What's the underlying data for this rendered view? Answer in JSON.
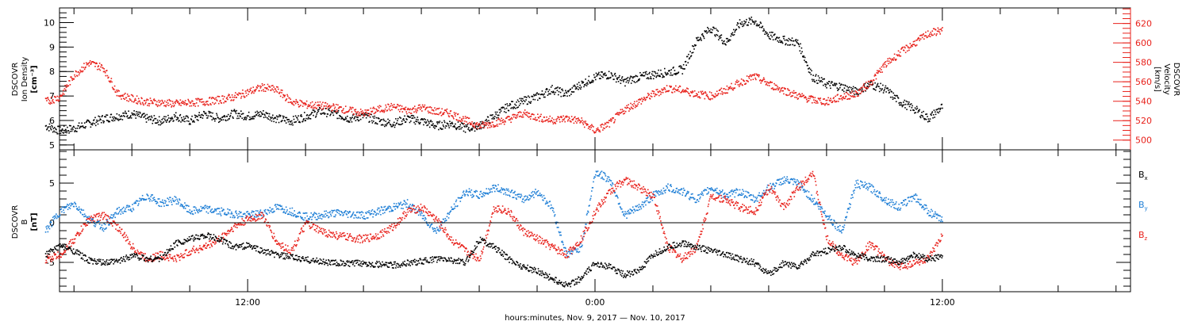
{
  "chart_data": [
    {
      "type": "scatter",
      "panel": "top",
      "ylabel_left": [
        "DSCOVR",
        "Ion Density",
        "[cm⁻³]"
      ],
      "ylabel_right": [
        "DSCOVR",
        "Velocity",
        "[km/s]"
      ],
      "ylim_left": [
        4.8,
        10.6
      ],
      "ylim_right": [
        490,
        636
      ],
      "yticks_left": [
        "5",
        "6",
        "7",
        "8",
        "9",
        "10"
      ],
      "yticks_left_values": [
        5,
        6,
        7,
        8,
        9,
        10
      ],
      "yticks_right": [
        "500",
        "520",
        "540",
        "560",
        "580",
        "600",
        "620"
      ],
      "yticks_right_values": [
        500,
        520,
        540,
        560,
        580,
        600,
        620
      ],
      "series": [
        {
          "axis": "left",
          "color": "#000000",
          "x": [
            5.0,
            5.5,
            6.0,
            6.5,
            7.0,
            7.5,
            8.0,
            8.5,
            9.0,
            9.5,
            10.0,
            10.5,
            11.0,
            11.5,
            12.0,
            12.5,
            13.0,
            13.5,
            14.0,
            14.5,
            15.0,
            15.5,
            16.0,
            16.5,
            17.0,
            17.5,
            18.0,
            18.5,
            19.0,
            19.5,
            20.0,
            20.5,
            21.0,
            21.5,
            22.0,
            22.5,
            23.0,
            23.5,
            24.0,
            24.5,
            25.0,
            25.5,
            26.0,
            26.5,
            27.0,
            27.5,
            28.0,
            28.5,
            29.0,
            29.5,
            30.0,
            30.5,
            31.0,
            31.5,
            32.0,
            32.5,
            33.0,
            33.5,
            34.0,
            34.5,
            35.0,
            35.5,
            36.0
          ],
          "y": [
            5.8,
            5.6,
            5.7,
            5.9,
            6.1,
            6.2,
            6.3,
            6.1,
            6.0,
            6.2,
            6.0,
            6.3,
            6.1,
            6.3,
            6.2,
            6.3,
            6.1,
            6.0,
            6.2,
            6.4,
            6.3,
            6.1,
            6.2,
            6.0,
            5.9,
            6.1,
            6.0,
            5.8,
            5.9,
            5.7,
            5.8,
            6.2,
            6.6,
            6.8,
            7.0,
            7.3,
            7.1,
            7.5,
            7.8,
            7.9,
            7.6,
            7.8,
            7.9,
            8.0,
            8.1,
            9.3,
            9.8,
            9.2,
            10.0,
            10.1,
            9.5,
            9.3,
            9.2,
            7.8,
            7.5,
            7.4,
            7.2,
            7.5,
            7.3,
            6.8,
            6.5,
            6.1,
            6.6
          ]
        },
        {
          "axis": "right",
          "color": "#e8211b",
          "x": [
            5.0,
            5.5,
            6.0,
            6.5,
            7.0,
            7.5,
            8.0,
            8.5,
            9.0,
            9.5,
            10.0,
            10.5,
            11.0,
            11.5,
            12.0,
            12.5,
            13.0,
            13.5,
            14.0,
            14.5,
            15.0,
            15.5,
            16.0,
            16.5,
            17.0,
            17.5,
            18.0,
            18.5,
            19.0,
            19.5,
            20.0,
            20.5,
            21.0,
            21.5,
            22.0,
            22.5,
            23.0,
            23.5,
            24.0,
            24.5,
            25.0,
            25.5,
            26.0,
            26.5,
            27.0,
            27.5,
            28.0,
            28.5,
            29.0,
            29.5,
            30.0,
            30.5,
            31.0,
            31.5,
            32.0,
            32.5,
            33.0,
            33.5,
            34.0,
            34.5,
            35.0,
            35.5,
            36.0
          ],
          "y": [
            540,
            545,
            568,
            580,
            575,
            548,
            543,
            540,
            539,
            538,
            539,
            540,
            542,
            545,
            550,
            555,
            552,
            540,
            537,
            536,
            534,
            531,
            528,
            532,
            535,
            531,
            534,
            530,
            528,
            521,
            515,
            518,
            522,
            528,
            524,
            521,
            523,
            520,
            510,
            518,
            532,
            540,
            548,
            554,
            552,
            548,
            546,
            552,
            560,
            566,
            558,
            552,
            546,
            542,
            540,
            545,
            548,
            560,
            578,
            590,
            600,
            610,
            614
          ]
        }
      ]
    },
    {
      "type": "scatter",
      "panel": "bottom",
      "ylabel_left": [
        "DSCOVR",
        "B",
        "[nT]"
      ],
      "ylim": [
        -8.7,
        9.2
      ],
      "yticks": [
        "-5",
        "0",
        "5"
      ],
      "yticks_values": [
        -5,
        0,
        5
      ],
      "zero_line": true,
      "series": [
        {
          "name": "B",
          "sub": "x",
          "color": "#000000",
          "x": [
            5.0,
            5.5,
            6.0,
            6.5,
            7.0,
            7.5,
            8.0,
            8.5,
            9.0,
            9.5,
            10.0,
            10.5,
            11.0,
            11.5,
            12.0,
            12.5,
            13.0,
            13.5,
            14.0,
            14.5,
            15.0,
            15.5,
            16.0,
            16.5,
            17.0,
            17.5,
            18.0,
            18.5,
            19.0,
            19.5,
            20.0,
            20.5,
            21.0,
            21.5,
            22.0,
            22.5,
            23.0,
            23.5,
            24.0,
            24.5,
            25.0,
            25.5,
            26.0,
            26.5,
            27.0,
            27.5,
            28.0,
            28.5,
            29.0,
            29.5,
            30.0,
            30.5,
            31.0,
            31.5,
            32.0,
            32.5,
            33.0,
            33.5,
            34.0,
            34.5,
            35.0,
            35.5,
            36.0
          ],
          "y": [
            -4.0,
            -2.8,
            -3.5,
            -4.7,
            -5.0,
            -4.8,
            -4.0,
            -4.5,
            -4.4,
            -2.5,
            -2.0,
            -1.5,
            -2.0,
            -3.0,
            -2.8,
            -3.5,
            -4.0,
            -4.3,
            -4.6,
            -4.8,
            -5.0,
            -5.1,
            -5.0,
            -5.2,
            -5.3,
            -5.0,
            -4.8,
            -4.5,
            -4.6,
            -5.0,
            -2.0,
            -3.0,
            -4.5,
            -5.5,
            -6.0,
            -7.0,
            -7.8,
            -7.0,
            -5.0,
            -5.5,
            -6.5,
            -6.0,
            -4.0,
            -3.0,
            -2.5,
            -3.0,
            -3.5,
            -4.0,
            -4.5,
            -5.0,
            -6.5,
            -5.0,
            -5.5,
            -4.0,
            -3.5,
            -3.0,
            -4.0,
            -4.5,
            -4.5,
            -5.0,
            -4.0,
            -4.5,
            -4.2
          ]
        },
        {
          "name": "B",
          "sub": "y",
          "color": "#1f7fd6",
          "x": [
            5.0,
            5.5,
            6.0,
            6.5,
            7.0,
            7.5,
            8.0,
            8.5,
            9.0,
            9.5,
            10.0,
            10.5,
            11.0,
            11.5,
            12.0,
            12.5,
            13.0,
            13.5,
            14.0,
            14.5,
            15.0,
            15.5,
            16.0,
            16.5,
            17.0,
            17.5,
            18.0,
            18.5,
            19.0,
            19.5,
            20.0,
            20.5,
            21.0,
            21.5,
            22.0,
            22.5,
            23.0,
            23.5,
            24.0,
            24.5,
            25.0,
            25.5,
            26.0,
            26.5,
            27.0,
            27.5,
            28.0,
            28.5,
            29.0,
            29.5,
            30.0,
            30.5,
            31.0,
            31.5,
            32.0,
            32.5,
            33.0,
            33.5,
            34.0,
            34.5,
            35.0,
            35.5,
            36.0
          ],
          "y": [
            -1.0,
            1.5,
            2.5,
            0.5,
            -0.5,
            1.5,
            2.0,
            3.5,
            2.5,
            3.0,
            1.5,
            1.8,
            1.5,
            1.2,
            1.0,
            1.3,
            2.0,
            1.5,
            0.8,
            1.0,
            1.3,
            1.2,
            1.0,
            1.5,
            2.0,
            2.5,
            1.0,
            -1.0,
            1.5,
            4.0,
            3.5,
            4.5,
            4.0,
            3.0,
            4.0,
            2.0,
            -4.0,
            -3.0,
            6.5,
            5.5,
            1.0,
            2.0,
            3.5,
            4.5,
            4.0,
            3.0,
            4.5,
            3.5,
            4.0,
            3.0,
            4.5,
            5.5,
            5.0,
            3.0,
            1.0,
            -1.0,
            5.0,
            4.5,
            3.0,
            2.0,
            3.5,
            1.5,
            0.3
          ]
        },
        {
          "name": "B",
          "sub": "z",
          "color": "#e8211b",
          "x": [
            5.0,
            5.5,
            6.0,
            6.5,
            7.0,
            7.5,
            8.0,
            8.5,
            9.0,
            9.5,
            10.0,
            10.5,
            11.0,
            11.5,
            12.0,
            12.5,
            13.0,
            13.5,
            14.0,
            14.5,
            15.0,
            15.5,
            16.0,
            16.5,
            17.0,
            17.5,
            18.0,
            18.5,
            19.0,
            19.5,
            20.0,
            20.5,
            21.0,
            21.5,
            22.0,
            22.5,
            23.0,
            23.5,
            24.0,
            24.5,
            25.0,
            25.5,
            26.0,
            26.5,
            27.0,
            27.5,
            28.0,
            28.5,
            29.0,
            29.5,
            30.0,
            30.5,
            31.0,
            31.5,
            32.0,
            32.5,
            33.0,
            33.5,
            34.0,
            34.5,
            35.0,
            35.5,
            36.0
          ],
          "y": [
            -4.5,
            -4.0,
            -2.0,
            0.5,
            1.0,
            -0.5,
            -3.0,
            -4.5,
            -4.0,
            -4.5,
            -3.5,
            -3.0,
            -2.0,
            -0.5,
            0.5,
            1.0,
            -2.5,
            -3.5,
            0.0,
            -1.0,
            -1.5,
            -1.8,
            -2.0,
            -1.5,
            -0.5,
            1.5,
            2.0,
            0.5,
            -2.0,
            -3.5,
            -4.5,
            2.0,
            1.5,
            -1.0,
            -2.0,
            -3.0,
            -4.0,
            -2.0,
            1.5,
            4.0,
            5.5,
            4.5,
            3.5,
            -3.0,
            -4.5,
            -3.0,
            3.5,
            3.0,
            2.0,
            1.5,
            4.5,
            2.0,
            4.5,
            6.5,
            -2.0,
            -4.0,
            -5.0,
            -2.5,
            -4.5,
            -5.5,
            -5.0,
            -4.5,
            -1.5
          ]
        }
      ],
      "legend": [
        {
          "label": "B",
          "sub": "x",
          "color": "#000000"
        },
        {
          "label": "B",
          "sub": "y",
          "color": "#1f7fd6"
        },
        {
          "label": "B",
          "sub": "z",
          "color": "#e8211b"
        }
      ]
    }
  ],
  "x_axis": {
    "xlim": [
      5.5,
      42.5
    ],
    "ticks": [
      "12:00",
      "0:00",
      "12:00"
    ],
    "ticks_values": [
      12,
      24,
      36
    ],
    "xlabel": "hours:minutes, Nov.  9, 2017 — Nov. 10, 2017"
  }
}
